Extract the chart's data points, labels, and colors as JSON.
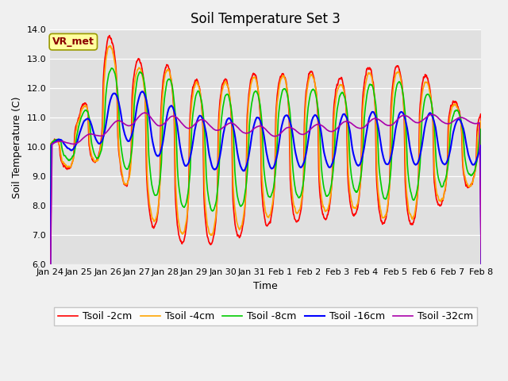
{
  "title": "Soil Temperature Set 3",
  "xlabel": "Time",
  "ylabel": "Soil Temperature (C)",
  "ylim": [
    6.0,
    14.0
  ],
  "yticks": [
    6.0,
    7.0,
    8.0,
    9.0,
    10.0,
    11.0,
    12.0,
    13.0,
    14.0
  ],
  "x_labels": [
    "Jan 24",
    "Jan 25",
    "Jan 26",
    "Jan 27",
    "Jan 28",
    "Jan 29",
    "Jan 30",
    "Jan 31",
    "Feb 1",
    "Feb 2",
    "Feb 3",
    "Feb 4",
    "Feb 5",
    "Feb 6",
    "Feb 7",
    "Feb 8"
  ],
  "series": [
    {
      "label": "Tsoil -2cm",
      "color": "#FF0000",
      "lw": 1.2
    },
    {
      "label": "Tsoil -4cm",
      "color": "#FFA500",
      "lw": 1.2
    },
    {
      "label": "Tsoil -8cm",
      "color": "#00CC00",
      "lw": 1.2
    },
    {
      "label": "Tsoil -16cm",
      "color": "#0000FF",
      "lw": 1.5
    },
    {
      "label": "Tsoil -32cm",
      "color": "#AA00AA",
      "lw": 1.2
    }
  ],
  "annotation_text": "VR_met",
  "annotation_color": "#8B0000",
  "plot_bg": "#E0E0E0",
  "fig_bg": "#F0F0F0",
  "title_fontsize": 12,
  "axis_fontsize": 9,
  "tick_fontsize": 8,
  "legend_fontsize": 9
}
